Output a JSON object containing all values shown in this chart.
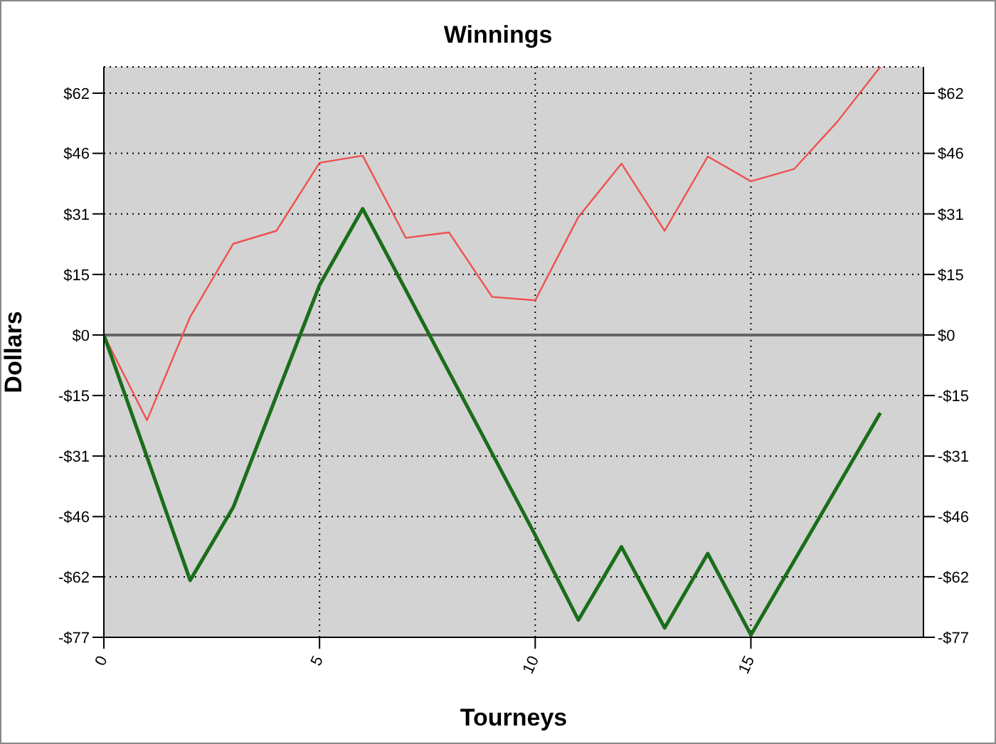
{
  "chart_data": {
    "type": "line",
    "title": "Winnings",
    "xlabel": "Tourneys",
    "ylabel": "Dollars",
    "x": [
      0,
      1,
      2,
      3,
      4,
      5,
      6,
      7,
      8,
      9,
      10,
      11,
      12,
      13,
      14,
      15,
      16,
      17,
      18
    ],
    "series": [
      {
        "color": "#f05050",
        "values": [
          0,
          -21.7,
          4.6,
          23.2,
          26.5,
          43.8,
          45.6,
          24.7,
          26.1,
          9.7,
          8.8,
          30.0,
          43.6,
          26.5,
          45.4,
          39.1,
          42.2,
          54.2,
          68.2
        ]
      },
      {
        "color": "#1a6e1a",
        "values": [
          0,
          -31,
          -62.4,
          -43.8,
          -15.5,
          12.7,
          32.1,
          11.4,
          -9.4,
          -30.1,
          -50.9,
          -72.5,
          -53.9,
          -74.5,
          -55.6,
          -76.3,
          -57.5,
          -38.7,
          -19.8
        ]
      }
    ],
    "xlim": [
      0,
      19
    ],
    "xticks": [
      0,
      5,
      10,
      15
    ],
    "ylim": [
      -76.9,
      68.2
    ],
    "yticks": [
      {
        "value": -76.9,
        "label": "-$77"
      },
      {
        "value": -61.5,
        "label": "-$62"
      },
      {
        "value": -46.2,
        "label": "-$46"
      },
      {
        "value": -30.8,
        "label": "-$31"
      },
      {
        "value": -15.4,
        "label": "-$15"
      },
      {
        "value": 0,
        "label": "$0"
      },
      {
        "value": 15.4,
        "label": "$15"
      },
      {
        "value": 30.8,
        "label": "$31"
      },
      {
        "value": 46.2,
        "label": "$46"
      },
      {
        "value": 61.5,
        "label": "$62"
      }
    ],
    "y2lim": [
      -76.9,
      68.2
    ],
    "y2ticks": [
      {
        "value": -76.9,
        "label": "-$77"
      },
      {
        "value": -61.5,
        "label": "-$62"
      },
      {
        "value": -46.2,
        "label": "-$46"
      },
      {
        "value": -30.8,
        "label": "-$31"
      },
      {
        "value": -15.4,
        "label": "-$15"
      },
      {
        "value": 0,
        "label": "$0"
      },
      {
        "value": 15.4,
        "label": "$15"
      },
      {
        "value": 30.8,
        "label": "$31"
      },
      {
        "value": 46.2,
        "label": "$46"
      },
      {
        "value": 61.5,
        "label": "$62"
      }
    ],
    "ref_lines": [
      {
        "axis": "y",
        "value": 0,
        "color": "#666666"
      }
    ],
    "grid": true,
    "marker": "none",
    "line_style": "solid"
  }
}
